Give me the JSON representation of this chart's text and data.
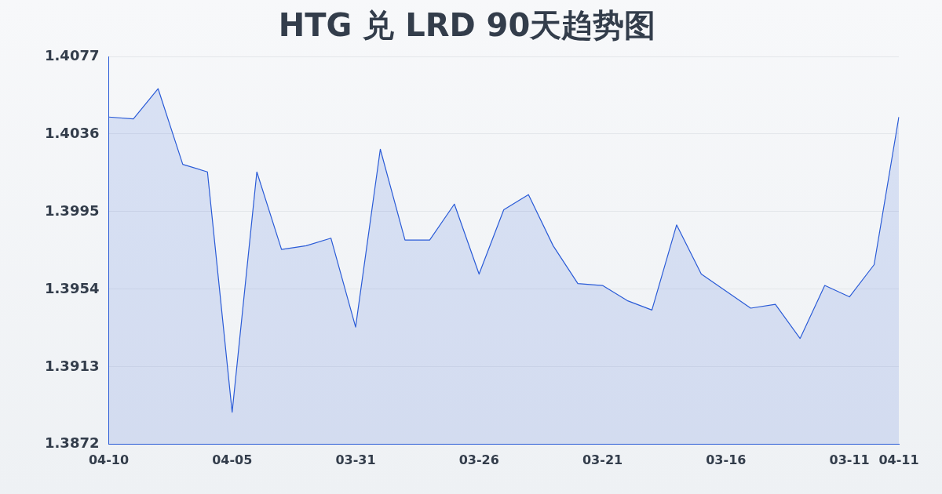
{
  "chart_data": {
    "type": "area",
    "title": "HTG 兑 LRD 90天趋势图",
    "categories": [
      "04-10",
      null,
      null,
      null,
      null,
      "04-05",
      null,
      null,
      null,
      null,
      "03-31",
      null,
      null,
      null,
      null,
      "03-26",
      null,
      null,
      null,
      null,
      "03-21",
      null,
      null,
      null,
      null,
      "03-16",
      null,
      null,
      null,
      null,
      "03-11",
      null,
      "04-11"
    ],
    "series": [
      {
        "color": "#2a5bd7",
        "values": [
          1.4045,
          1.4044,
          1.406,
          1.402,
          1.4016,
          1.3889,
          1.4016,
          1.3975,
          1.3977,
          1.3981,
          1.3934,
          1.4028,
          1.398,
          1.398,
          1.3999,
          1.3962,
          1.3996,
          1.4004,
          1.3977,
          1.3957,
          1.3956,
          1.3948,
          1.3943,
          1.3988,
          1.3962,
          1.3953,
          1.3944,
          1.3946,
          1.3928,
          1.3956,
          1.395,
          1.3967,
          1.4045
        ]
      }
    ],
    "ylim": [
      1.3872,
      1.4077
    ],
    "yticks": [
      1.3872,
      1.3913,
      1.3954,
      1.3995,
      1.4036,
      1.4077
    ],
    "grid": "y",
    "legend": false,
    "marker": "none"
  }
}
